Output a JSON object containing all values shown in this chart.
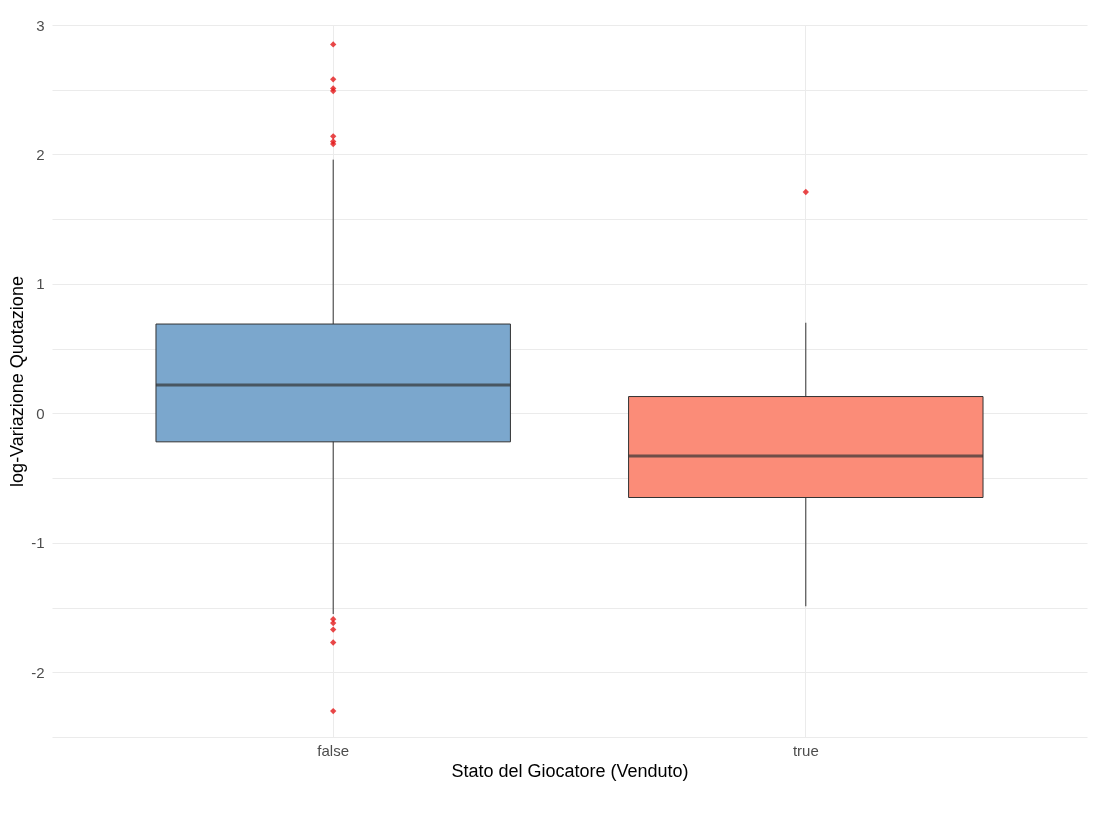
{
  "chart_data": {
    "type": "box",
    "xlabel": "Stato del Giocatore (Venduto)",
    "ylabel": "log-Variazione Quotazione",
    "categories": [
      "false",
      "true"
    ],
    "colors": [
      "#7ba7cd",
      "#fb8c78"
    ],
    "boxes": [
      {
        "low": -1.55,
        "q1": -0.22,
        "median": 0.22,
        "q3": 0.69,
        "high": 1.96,
        "outliers": [
          2.85,
          2.58,
          2.51,
          2.49,
          2.14,
          2.1,
          2.08,
          -1.59,
          -1.62,
          -1.67,
          -1.77,
          -2.3
        ]
      },
      {
        "low": -1.49,
        "q1": -0.65,
        "median": -0.33,
        "q3": 0.13,
        "high": 0.7,
        "outliers": [
          1.71
        ]
      }
    ],
    "ylim": [
      -2.5,
      3
    ],
    "yticks": [
      {
        "value": -2.5,
        "label": null
      },
      -2,
      {
        "value": -1.5,
        "label": null
      },
      -1,
      {
        "value": -0.5,
        "label": null
      },
      0,
      {
        "value": 0.5,
        "label": null
      },
      1,
      {
        "value": 1.5,
        "label": null
      },
      2,
      {
        "value": 2.5,
        "label": null
      },
      3
    ],
    "grid": true
  }
}
